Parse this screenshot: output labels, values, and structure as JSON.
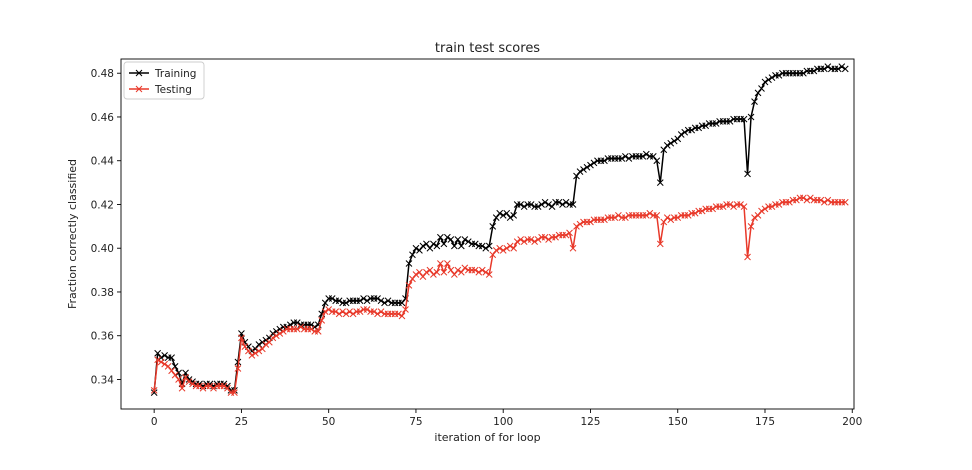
{
  "chart_data": {
    "type": "line",
    "title": "train test scores",
    "xlabel": "iteration of for loop",
    "ylabel": "Fraction correctly classified",
    "xlim": [
      -9.5,
      200.5
    ],
    "ylim": [
      0.3265,
      0.4865
    ],
    "xticks": [
      0,
      25,
      50,
      75,
      100,
      125,
      150,
      175,
      200
    ],
    "yticks": [
      0.34,
      0.36,
      0.38,
      0.4,
      0.42,
      0.44,
      0.46,
      0.48
    ],
    "xtick_labels": [
      "0",
      "25",
      "50",
      "75",
      "100",
      "125",
      "150",
      "175",
      "200"
    ],
    "ytick_labels": [
      "0.34",
      "0.36",
      "0.38",
      "0.40",
      "0.42",
      "0.44",
      "0.46",
      "0.48"
    ],
    "grid": false,
    "legend": "top-left",
    "marker": "x",
    "series": [
      {
        "name": "Training",
        "color": "#000000",
        "x_start": 0,
        "values": [
          0.334,
          0.352,
          0.35,
          0.351,
          0.35,
          0.35,
          0.346,
          0.343,
          0.338,
          0.343,
          0.34,
          0.339,
          0.338,
          0.338,
          0.337,
          0.338,
          0.338,
          0.337,
          0.338,
          0.338,
          0.338,
          0.337,
          0.335,
          0.335,
          0.348,
          0.361,
          0.357,
          0.355,
          0.353,
          0.354,
          0.356,
          0.357,
          0.358,
          0.359,
          0.361,
          0.362,
          0.363,
          0.364,
          0.364,
          0.365,
          0.366,
          0.366,
          0.365,
          0.365,
          0.365,
          0.365,
          0.364,
          0.365,
          0.37,
          0.375,
          0.377,
          0.377,
          0.376,
          0.376,
          0.375,
          0.375,
          0.376,
          0.376,
          0.376,
          0.376,
          0.377,
          0.376,
          0.377,
          0.377,
          0.377,
          0.376,
          0.375,
          0.376,
          0.375,
          0.375,
          0.375,
          0.375,
          0.377,
          0.393,
          0.397,
          0.4,
          0.399,
          0.401,
          0.402,
          0.4,
          0.402,
          0.401,
          0.405,
          0.402,
          0.405,
          0.404,
          0.401,
          0.404,
          0.401,
          0.404,
          0.403,
          0.402,
          0.402,
          0.401,
          0.401,
          0.4,
          0.401,
          0.41,
          0.414,
          0.416,
          0.415,
          0.416,
          0.414,
          0.415,
          0.42,
          0.42,
          0.419,
          0.42,
          0.42,
          0.419,
          0.419,
          0.42,
          0.421,
          0.42,
          0.419,
          0.421,
          0.421,
          0.42,
          0.421,
          0.42,
          0.42,
          0.433,
          0.435,
          0.436,
          0.437,
          0.438,
          0.439,
          0.44,
          0.44,
          0.44,
          0.441,
          0.441,
          0.441,
          0.441,
          0.441,
          0.442,
          0.441,
          0.442,
          0.442,
          0.442,
          0.442,
          0.443,
          0.442,
          0.442,
          0.44,
          0.43,
          0.445,
          0.447,
          0.448,
          0.449,
          0.45,
          0.452,
          0.453,
          0.454,
          0.454,
          0.455,
          0.455,
          0.456,
          0.456,
          0.457,
          0.457,
          0.457,
          0.458,
          0.458,
          0.458,
          0.458,
          0.459,
          0.459,
          0.459,
          0.459,
          0.434,
          0.46,
          0.467,
          0.471,
          0.473,
          0.476,
          0.477,
          0.478,
          0.479,
          0.479,
          0.48,
          0.48,
          0.48,
          0.48,
          0.48,
          0.48,
          0.48,
          0.481,
          0.481,
          0.481,
          0.482,
          0.482,
          0.482,
          0.483,
          0.482,
          0.482,
          0.482,
          0.483,
          0.482
        ]
      },
      {
        "name": "Testing",
        "color": "#e8392a",
        "x_start": 0,
        "values": [
          0.335,
          0.349,
          0.348,
          0.347,
          0.346,
          0.344,
          0.342,
          0.34,
          0.336,
          0.341,
          0.339,
          0.338,
          0.337,
          0.337,
          0.336,
          0.337,
          0.337,
          0.336,
          0.337,
          0.337,
          0.337,
          0.336,
          0.334,
          0.334,
          0.345,
          0.359,
          0.355,
          0.353,
          0.351,
          0.352,
          0.353,
          0.354,
          0.356,
          0.357,
          0.359,
          0.36,
          0.361,
          0.362,
          0.363,
          0.363,
          0.363,
          0.363,
          0.364,
          0.363,
          0.363,
          0.363,
          0.362,
          0.362,
          0.367,
          0.371,
          0.372,
          0.371,
          0.371,
          0.37,
          0.371,
          0.37,
          0.371,
          0.37,
          0.371,
          0.371,
          0.372,
          0.372,
          0.371,
          0.371,
          0.37,
          0.371,
          0.37,
          0.37,
          0.37,
          0.37,
          0.37,
          0.369,
          0.372,
          0.383,
          0.386,
          0.388,
          0.389,
          0.387,
          0.389,
          0.39,
          0.388,
          0.389,
          0.393,
          0.389,
          0.393,
          0.39,
          0.388,
          0.39,
          0.389,
          0.391,
          0.39,
          0.39,
          0.39,
          0.389,
          0.39,
          0.389,
          0.388,
          0.397,
          0.399,
          0.4,
          0.399,
          0.4,
          0.401,
          0.4,
          0.403,
          0.404,
          0.403,
          0.404,
          0.404,
          0.403,
          0.404,
          0.405,
          0.405,
          0.404,
          0.405,
          0.405,
          0.406,
          0.406,
          0.406,
          0.407,
          0.4,
          0.41,
          0.411,
          0.412,
          0.412,
          0.412,
          0.413,
          0.413,
          0.413,
          0.413,
          0.414,
          0.414,
          0.414,
          0.415,
          0.414,
          0.414,
          0.415,
          0.415,
          0.415,
          0.415,
          0.415,
          0.415,
          0.416,
          0.415,
          0.415,
          0.402,
          0.412,
          0.414,
          0.413,
          0.414,
          0.414,
          0.415,
          0.415,
          0.415,
          0.416,
          0.416,
          0.417,
          0.417,
          0.418,
          0.418,
          0.418,
          0.419,
          0.419,
          0.419,
          0.42,
          0.42,
          0.419,
          0.42,
          0.42,
          0.419,
          0.396,
          0.41,
          0.414,
          0.415,
          0.417,
          0.418,
          0.419,
          0.419,
          0.42,
          0.42,
          0.421,
          0.421,
          0.421,
          0.422,
          0.422,
          0.423,
          0.423,
          0.422,
          0.423,
          0.422,
          0.422,
          0.422,
          0.421,
          0.422,
          0.421,
          0.421,
          0.421,
          0.421,
          0.421
        ]
      }
    ]
  }
}
